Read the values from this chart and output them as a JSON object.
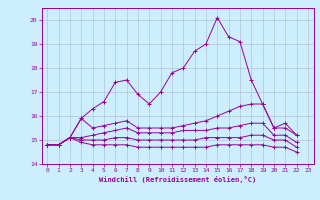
{
  "xlabel": "Windchill (Refroidissement éolien,°C)",
  "background_color": "#cceeff",
  "line_color": "#990099",
  "grid_color": "#aabbcc",
  "xlim": [
    -0.5,
    23.5
  ],
  "ylim": [
    14,
    20.5
  ],
  "yticks": [
    14,
    15,
    16,
    17,
    18,
    19,
    20
  ],
  "xticks": [
    0,
    1,
    2,
    3,
    4,
    5,
    6,
    7,
    8,
    9,
    10,
    11,
    12,
    13,
    14,
    15,
    16,
    17,
    18,
    19,
    20,
    21,
    22,
    23
  ],
  "series": [
    [
      14.8,
      14.8,
      15.1,
      15.9,
      16.3,
      16.6,
      17.4,
      17.5,
      16.9,
      16.5,
      17.0,
      17.8,
      18.0,
      18.7,
      19.0,
      20.1,
      19.3,
      19.1,
      17.5,
      16.5,
      15.5,
      15.7,
      15.2
    ],
    [
      14.8,
      14.8,
      15.1,
      15.9,
      15.5,
      15.6,
      15.7,
      15.8,
      15.5,
      15.5,
      15.5,
      15.5,
      15.6,
      15.7,
      15.8,
      16.0,
      16.2,
      16.4,
      16.5,
      16.5,
      15.5,
      15.5,
      15.2
    ],
    [
      14.8,
      14.8,
      15.1,
      15.1,
      15.2,
      15.3,
      15.4,
      15.5,
      15.3,
      15.3,
      15.3,
      15.3,
      15.4,
      15.4,
      15.4,
      15.5,
      15.5,
      15.6,
      15.7,
      15.7,
      15.2,
      15.2,
      14.9
    ],
    [
      14.8,
      14.8,
      15.1,
      15.0,
      15.0,
      15.0,
      15.1,
      15.1,
      15.0,
      15.0,
      15.0,
      15.0,
      15.0,
      15.0,
      15.1,
      15.1,
      15.1,
      15.1,
      15.2,
      15.2,
      15.0,
      15.0,
      14.7
    ],
    [
      14.8,
      14.8,
      15.1,
      14.9,
      14.8,
      14.8,
      14.8,
      14.8,
      14.7,
      14.7,
      14.7,
      14.7,
      14.7,
      14.7,
      14.7,
      14.8,
      14.8,
      14.8,
      14.8,
      14.8,
      14.7,
      14.7,
      14.5
    ]
  ],
  "marker": "+"
}
